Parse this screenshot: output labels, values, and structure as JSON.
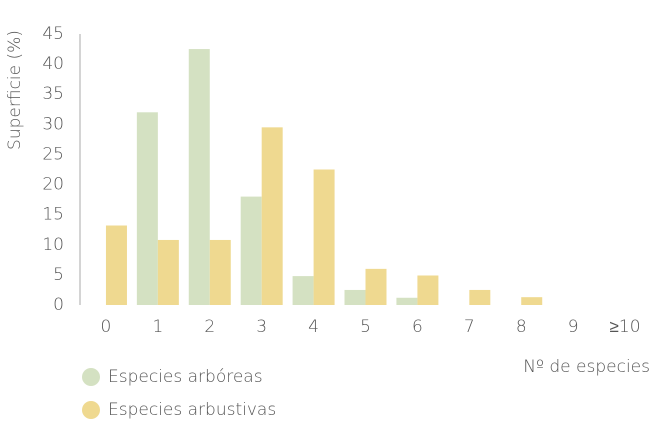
{
  "chart_data": {
    "type": "bar",
    "ylabel": "Superficie (%)",
    "xlabel": "Nº de especies",
    "categories": [
      "0",
      "1",
      "2",
      "3",
      "4",
      "5",
      "6",
      "7",
      "8",
      "9",
      "≥10"
    ],
    "series": [
      {
        "name": "Especies arbóreas",
        "color": "#d4e1c2",
        "values": [
          0,
          32,
          42.5,
          18,
          4.8,
          2.5,
          1.2,
          0,
          0,
          0,
          0
        ]
      },
      {
        "name": "Especies arbustivas",
        "color": "#efd990",
        "values": [
          13.2,
          10.8,
          10.8,
          29.5,
          22.5,
          6,
          4.9,
          2.5,
          1.3,
          0,
          0
        ]
      }
    ],
    "ylim": [
      0,
      45
    ],
    "yticks": [
      0,
      5,
      10,
      15,
      20,
      25,
      30,
      35,
      40,
      45
    ],
    "legend": "bottom-left"
  }
}
